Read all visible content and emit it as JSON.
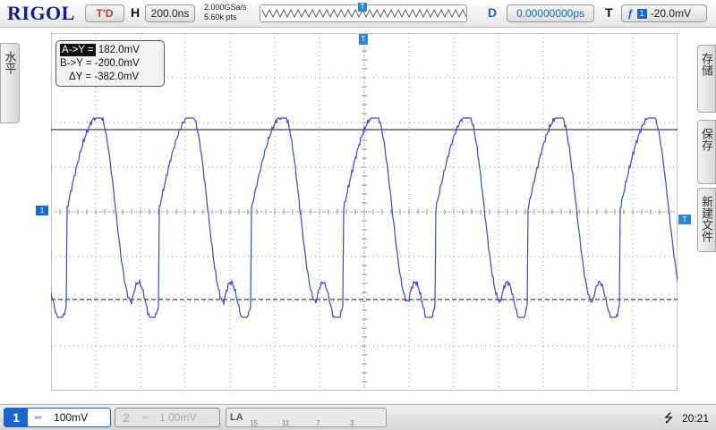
{
  "brand": "RIGOL",
  "top": {
    "run_status": "T'D",
    "horizontal_label": "H",
    "timebase": "200.0ns",
    "sample_rate": "2.000GSa/s",
    "points": "5.60k pts",
    "delay_label": "D",
    "delay": "0.00000000ps",
    "trigger_label": "T",
    "trigger_channel": "1",
    "trigger_level": "-20.0mV"
  },
  "left_menu": {
    "label": "水平"
  },
  "right_menu": [
    {
      "label": "存储"
    },
    {
      "label": "保存"
    },
    {
      "label": "新建文件"
    }
  ],
  "markers": {
    "ch1": "1",
    "trigger": "T",
    "top_trigger": "T"
  },
  "cursor": {
    "a_label": "A->Y =",
    "a_value": "182.0mV",
    "b_label": "B->Y =",
    "b_value": "-200.0mV",
    "delta_label": "ΔY =",
    "delta_value": "-382.0mV"
  },
  "bottom": {
    "ch1": {
      "num": "1",
      "coupling": "═",
      "scale": "100mV"
    },
    "ch2": {
      "num": "2",
      "coupling": "═",
      "scale": "1.00mV"
    },
    "la": {
      "label": "LA",
      "nums": [
        "15",
        "11",
        "7",
        "3"
      ]
    },
    "time": "20:21"
  },
  "colors": {
    "waveform": "#3a46d0",
    "accent": "#1a66cc",
    "grid": "#9a9a9a",
    "brand": "#1a1a8c"
  }
}
